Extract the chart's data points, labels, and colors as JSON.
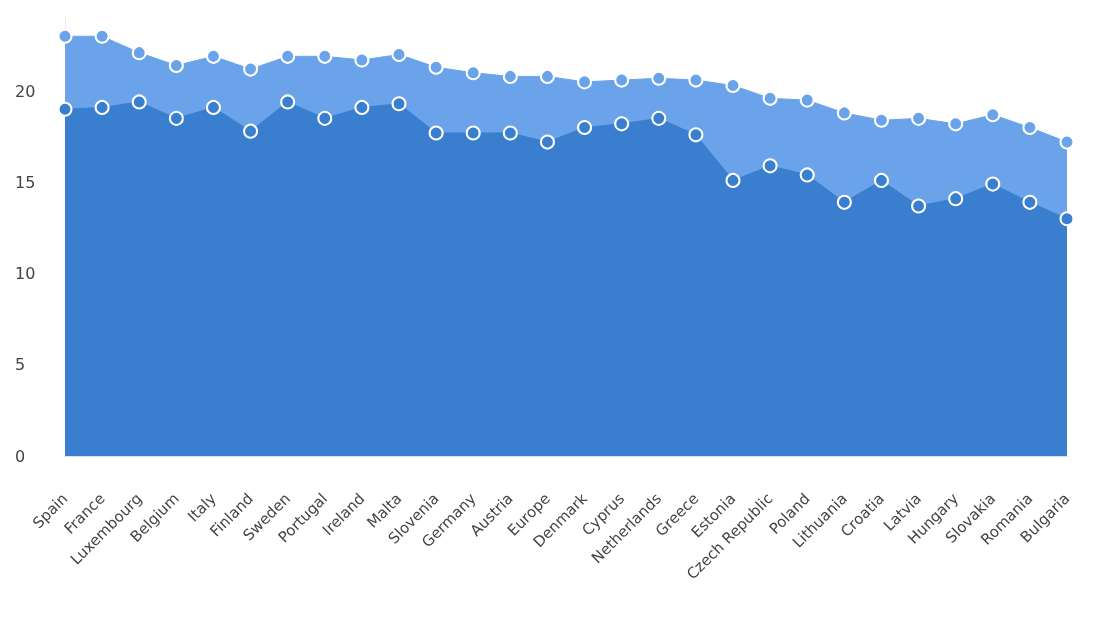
{
  "chart_data": {
    "type": "area",
    "categories": [
      "Spain",
      "France",
      "Luxembourg",
      "Belgium",
      "Italy",
      "Finland",
      "Sweden",
      "Portugal",
      "Ireland",
      "Malta",
      "Slovenia",
      "Germany",
      "Austria",
      "Europe",
      "Denmark",
      "Cyprus",
      "Netherlands",
      "Greece",
      "Estonia",
      "Czech Republic",
      "Poland",
      "Lithuania",
      "Croatia",
      "Latvia",
      "Hungary",
      "Slovakia",
      "Romania",
      "Bulgaria"
    ],
    "series": [
      {
        "color": "#6ba3ea",
        "values": [
          23.0,
          23.0,
          22.1,
          21.4,
          21.9,
          21.2,
          21.9,
          21.9,
          21.7,
          22.0,
          21.3,
          21.0,
          20.8,
          20.8,
          20.5,
          20.6,
          20.7,
          20.6,
          20.3,
          19.6,
          19.5,
          18.8,
          18.4,
          18.5,
          18.2,
          18.7,
          18.0,
          17.2
        ]
      },
      {
        "color": "#3a7ecf",
        "values": [
          19.0,
          19.1,
          19.4,
          18.5,
          19.1,
          17.8,
          19.4,
          18.5,
          19.1,
          19.3,
          17.7,
          17.7,
          17.7,
          17.2,
          18.0,
          18.2,
          18.5,
          17.6,
          15.1,
          15.9,
          15.4,
          13.9,
          15.1,
          13.7,
          14.1,
          14.9,
          13.9,
          13.0
        ]
      }
    ],
    "ylim": [
      0,
      24
    ],
    "yticks": [
      0,
      5,
      10,
      15,
      20
    ],
    "grid": false,
    "marker": "circle",
    "line_style": "solid"
  }
}
